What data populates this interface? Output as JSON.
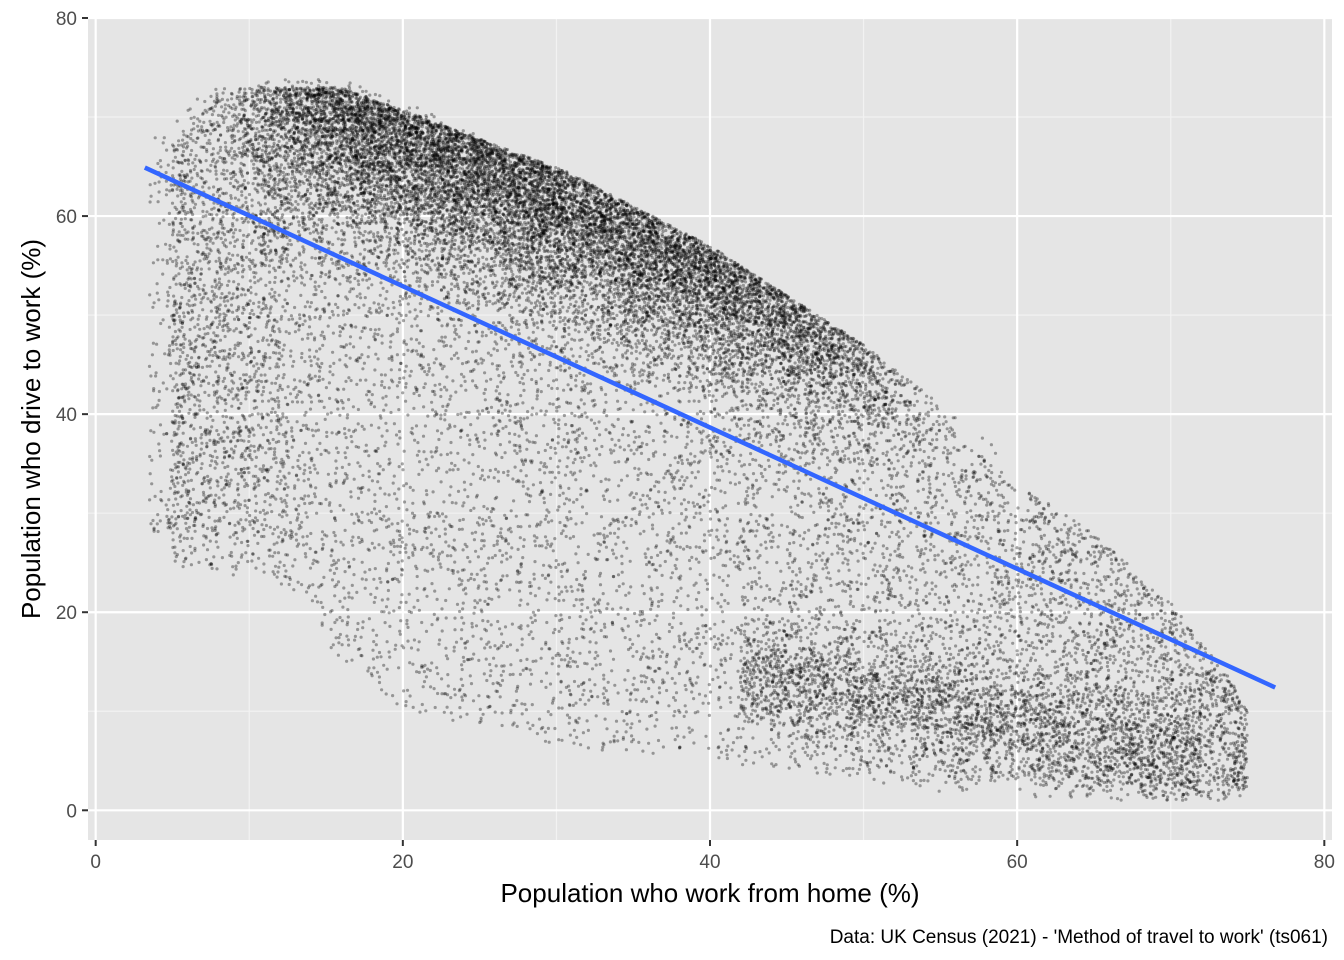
{
  "chart_data": {
    "type": "scatter",
    "title": "",
    "xlabel": "Population who work from home (%)",
    "ylabel": "Population who drive to work (%)",
    "caption": "Data: UK Census (2021) - 'Method of travel to work' (ts061)",
    "xlim": [
      -0.5,
      80.5
    ],
    "ylim": [
      -3,
      80
    ],
    "x_ticks": [
      0,
      20,
      40,
      60,
      80
    ],
    "y_ticks": [
      0,
      20,
      40,
      60,
      80
    ],
    "x_tick_labels": [
      "0",
      "20",
      "40",
      "60",
      "80"
    ],
    "y_tick_labels": [
      "0",
      "20",
      "40",
      "60",
      "80"
    ],
    "grid": true,
    "background_color": "#e5e5e5",
    "point_color": "#000000",
    "point_alpha": 0.35,
    "approx_point_count": 30000,
    "trend_line": {
      "type": "linear",
      "color": "#3366ff",
      "x": [
        3.2,
        76.8
      ],
      "y": [
        64.9,
        12.4
      ]
    },
    "point_cloud_density": [
      {
        "x": 4,
        "y_range": [
          25,
          66
        ]
      },
      {
        "x": 8,
        "y_range": [
          24,
          72
        ]
      },
      {
        "x": 12,
        "y_range": [
          23,
          74
        ]
      },
      {
        "x": 16,
        "y_range": [
          15,
          74
        ]
      },
      {
        "x": 20,
        "y_range": [
          10,
          72
        ]
      },
      {
        "x": 25,
        "y_range": [
          8,
          68
        ]
      },
      {
        "x": 30,
        "y_range": [
          6,
          63
        ]
      },
      {
        "x": 35,
        "y_range": [
          6,
          59
        ]
      },
      {
        "x": 40,
        "y_range": [
          5,
          55
        ]
      },
      {
        "x": 45,
        "y_range": [
          4,
          50
        ]
      },
      {
        "x": 50,
        "y_range": [
          3,
          45
        ]
      },
      {
        "x": 55,
        "y_range": [
          2,
          39
        ]
      },
      {
        "x": 60,
        "y_range": [
          2,
          33
        ]
      },
      {
        "x": 65,
        "y_range": [
          2,
          28
        ]
      },
      {
        "x": 70,
        "y_range": [
          1,
          21
        ]
      },
      {
        "x": 74,
        "y_range": [
          1,
          13
        ]
      },
      {
        "x": 77,
        "y_range": [
          1,
          4
        ]
      }
    ]
  }
}
